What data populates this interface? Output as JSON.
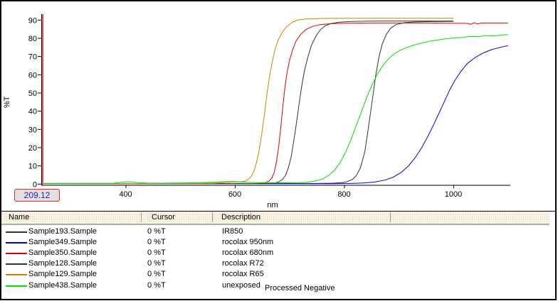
{
  "window": {
    "background": "#ffffff",
    "border_color": "#000000"
  },
  "chart": {
    "ylabel": "%T",
    "xlabel": "nm",
    "cursor_readout": "209.12",
    "cursor_line_color": "#ff0000",
    "cursor_text_color": "#2222cc",
    "cursor_box_border_color": "#ee2222"
  },
  "chart_data": {
    "type": "line",
    "title": "",
    "xlabel": "nm",
    "ylabel": "%T",
    "xlim": [
      250,
      1100
    ],
    "ylim": [
      0,
      94
    ],
    "x_ticks": [
      400,
      600,
      800,
      1000
    ],
    "y_ticks": [
      0,
      10,
      20,
      30,
      40,
      50,
      60,
      70,
      80,
      90
    ],
    "grid": false,
    "legend_position": "table-below",
    "series": [
      {
        "name": "Sample193.Sample",
        "description": "IR850",
        "color": "#333333",
        "points": [
          [
            250,
            0.3
          ],
          [
            350,
            0.3
          ],
          [
            450,
            0.3
          ],
          [
            550,
            0.3
          ],
          [
            650,
            0.3
          ],
          [
            700,
            0.3
          ],
          [
            750,
            0.35
          ],
          [
            780,
            0.5
          ],
          [
            795,
            0.8
          ],
          [
            805,
            1.3
          ],
          [
            815,
            2.5
          ],
          [
            822,
            4.5
          ],
          [
            830,
            9
          ],
          [
            838,
            18
          ],
          [
            845,
            32
          ],
          [
            852,
            47
          ],
          [
            858,
            60
          ],
          [
            864,
            70
          ],
          [
            870,
            77
          ],
          [
            877,
            82
          ],
          [
            885,
            85.5
          ],
          [
            895,
            87.5
          ],
          [
            910,
            88.6
          ],
          [
            930,
            89
          ],
          [
            960,
            89.2
          ],
          [
            1000,
            89.3
          ]
        ]
      },
      {
        "name": "Sample349.Sample",
        "description": "rocolax 950nm",
        "color": "#0000dd",
        "points": [
          [
            250,
            0.2
          ],
          [
            400,
            0.2
          ],
          [
            550,
            0.2
          ],
          [
            700,
            0.2
          ],
          [
            780,
            0.25
          ],
          [
            810,
            0.35
          ],
          [
            835,
            0.6
          ],
          [
            855,
            1.1
          ],
          [
            875,
            2.2
          ],
          [
            890,
            3.8
          ],
          [
            905,
            6.5
          ],
          [
            918,
            10
          ],
          [
            930,
            14.5
          ],
          [
            942,
            20
          ],
          [
            953,
            26
          ],
          [
            963,
            32
          ],
          [
            973,
            38.5
          ],
          [
            983,
            45
          ],
          [
            993,
            51.5
          ],
          [
            1003,
            57
          ],
          [
            1013,
            61.5
          ],
          [
            1025,
            66
          ],
          [
            1040,
            69.5
          ],
          [
            1055,
            72
          ],
          [
            1070,
            73.8
          ],
          [
            1085,
            75
          ],
          [
            1100,
            76
          ]
        ]
      },
      {
        "name": "Sample350.Sample",
        "description": "rocolax 680nm",
        "color": "#dd0000",
        "points": [
          [
            250,
            0.3
          ],
          [
            400,
            0.3
          ],
          [
            550,
            0.3
          ],
          [
            620,
            0.3
          ],
          [
            640,
            0.35
          ],
          [
            650,
            0.5
          ],
          [
            657,
            0.9
          ],
          [
            663,
            1.8
          ],
          [
            668,
            3.5
          ],
          [
            672,
            6.5
          ],
          [
            676,
            12
          ],
          [
            680,
            20
          ],
          [
            684,
            31
          ],
          [
            688,
            43
          ],
          [
            692,
            54
          ],
          [
            696,
            62
          ],
          [
            700,
            68
          ],
          [
            706,
            74
          ],
          [
            712,
            78.5
          ],
          [
            720,
            82
          ],
          [
            730,
            84.8
          ],
          [
            742,
            86.5
          ],
          [
            756,
            87.5
          ],
          [
            775,
            88
          ],
          [
            800,
            88.3
          ],
          [
            850,
            88.4
          ],
          [
            900,
            88.4
          ],
          [
            950,
            88.4
          ],
          [
            1000,
            88.3
          ],
          [
            1025,
            88.2
          ],
          [
            1032,
            87.7
          ],
          [
            1038,
            88.6
          ],
          [
            1044,
            87.9
          ],
          [
            1052,
            88.4
          ],
          [
            1075,
            88.4
          ],
          [
            1100,
            88.4
          ]
        ]
      },
      {
        "name": "Sample128.Sample",
        "description": "rocolax R72",
        "color": "#333333",
        "points": [
          [
            250,
            0.3
          ],
          [
            400,
            0.3
          ],
          [
            550,
            0.3
          ],
          [
            640,
            0.3
          ],
          [
            660,
            0.35
          ],
          [
            672,
            0.6
          ],
          [
            680,
            1.2
          ],
          [
            687,
            2.5
          ],
          [
            693,
            5
          ],
          [
            698,
            9
          ],
          [
            703,
            15
          ],
          [
            708,
            24
          ],
          [
            713,
            34
          ],
          [
            718,
            45
          ],
          [
            723,
            55
          ],
          [
            728,
            63
          ],
          [
            734,
            70
          ],
          [
            740,
            76
          ],
          [
            748,
            81
          ],
          [
            756,
            84.5
          ],
          [
            765,
            86.8
          ],
          [
            775,
            88
          ],
          [
            790,
            88.8
          ],
          [
            810,
            89.2
          ],
          [
            840,
            89.4
          ],
          [
            880,
            89.5
          ],
          [
            940,
            89.5
          ],
          [
            1000,
            89.5
          ]
        ]
      },
      {
        "name": "Sample129.Sample",
        "description": "rocolax R65",
        "color": "#cc8400",
        "points": [
          [
            250,
            0.3
          ],
          [
            350,
            0.3
          ],
          [
            450,
            0.3
          ],
          [
            530,
            0.35
          ],
          [
            560,
            0.5
          ],
          [
            580,
            0.8
          ],
          [
            595,
            1.1
          ],
          [
            605,
            1.2
          ],
          [
            612,
            1.3
          ],
          [
            618,
            1.6
          ],
          [
            624,
            2.4
          ],
          [
            629,
            3.8
          ],
          [
            634,
            6.5
          ],
          [
            639,
            11
          ],
          [
            644,
            18
          ],
          [
            649,
            27
          ],
          [
            654,
            38
          ],
          [
            659,
            50
          ],
          [
            664,
            60
          ],
          [
            669,
            68
          ],
          [
            674,
            74.5
          ],
          [
            680,
            79.5
          ],
          [
            687,
            83.5
          ],
          [
            695,
            86.5
          ],
          [
            705,
            88.8
          ],
          [
            715,
            90
          ],
          [
            730,
            90.6
          ],
          [
            760,
            90.9
          ],
          [
            800,
            91
          ],
          [
            850,
            91
          ],
          [
            900,
            91
          ],
          [
            950,
            91
          ],
          [
            1000,
            91
          ]
        ]
      },
      {
        "name": "Sample438.Sample",
        "description": "unexposed",
        "color": "#00dd00",
        "points": [
          [
            250,
            0.4
          ],
          [
            300,
            0.4
          ],
          [
            350,
            0.45
          ],
          [
            378,
            0.5
          ],
          [
            390,
            0.9
          ],
          [
            398,
            1.2
          ],
          [
            406,
            1.3
          ],
          [
            414,
            1.1
          ],
          [
            424,
            0.8
          ],
          [
            440,
            0.55
          ],
          [
            470,
            0.5
          ],
          [
            500,
            0.6
          ],
          [
            525,
            0.7
          ],
          [
            548,
            0.9
          ],
          [
            562,
            1.1
          ],
          [
            575,
            1.3
          ],
          [
            588,
            1.4
          ],
          [
            598,
            1.4
          ],
          [
            610,
            1.2
          ],
          [
            625,
            1.0
          ],
          [
            645,
            0.8
          ],
          [
            670,
            0.7
          ],
          [
            695,
            0.7
          ],
          [
            715,
            0.8
          ],
          [
            730,
            1.0
          ],
          [
            742,
            1.4
          ],
          [
            752,
            2.0
          ],
          [
            762,
            3.0
          ],
          [
            772,
            4.8
          ],
          [
            782,
            7.5
          ],
          [
            792,
            11.5
          ],
          [
            802,
            17
          ],
          [
            812,
            24
          ],
          [
            822,
            32
          ],
          [
            832,
            40
          ],
          [
            842,
            48
          ],
          [
            852,
            55
          ],
          [
            862,
            61
          ],
          [
            872,
            65.5
          ],
          [
            882,
            69
          ],
          [
            892,
            71.5
          ],
          [
            902,
            73.3
          ],
          [
            915,
            75
          ],
          [
            928,
            76.3
          ],
          [
            942,
            77.4
          ],
          [
            956,
            78.3
          ],
          [
            970,
            79
          ],
          [
            985,
            79.7
          ],
          [
            1000,
            80.2
          ],
          [
            1015,
            80.4
          ],
          [
            1030,
            81
          ],
          [
            1045,
            80.9
          ],
          [
            1060,
            81.5
          ],
          [
            1075,
            81.3
          ],
          [
            1090,
            81.9
          ],
          [
            1100,
            82
          ]
        ]
      }
    ]
  },
  "legend_table": {
    "columns": [
      "Name",
      "Cursor",
      "Description"
    ],
    "rows": [
      {
        "name": "Sample193.Sample",
        "cursor": "0 %T",
        "description": "IR850",
        "color": "#333333"
      },
      {
        "name": "Sample349.Sample",
        "cursor": "0 %T",
        "description": "rocolax 950nm",
        "color": "#0000dd"
      },
      {
        "name": "Sample350.Sample",
        "cursor": "0 %T",
        "description": "rocolax 680nm",
        "color": "#dd0000"
      },
      {
        "name": "Sample128.Sample",
        "cursor": "0 %T",
        "description": "rocolax R72",
        "color": "#333333"
      },
      {
        "name": "Sample129.Sample",
        "cursor": "0 %T",
        "description": "rocolax R65",
        "color": "#cc8400"
      },
      {
        "name": "Sample438.Sample",
        "cursor": "0 %T",
        "description": "unexposed",
        "color": "#00dd00"
      }
    ],
    "annotation": "Processed Negative"
  }
}
